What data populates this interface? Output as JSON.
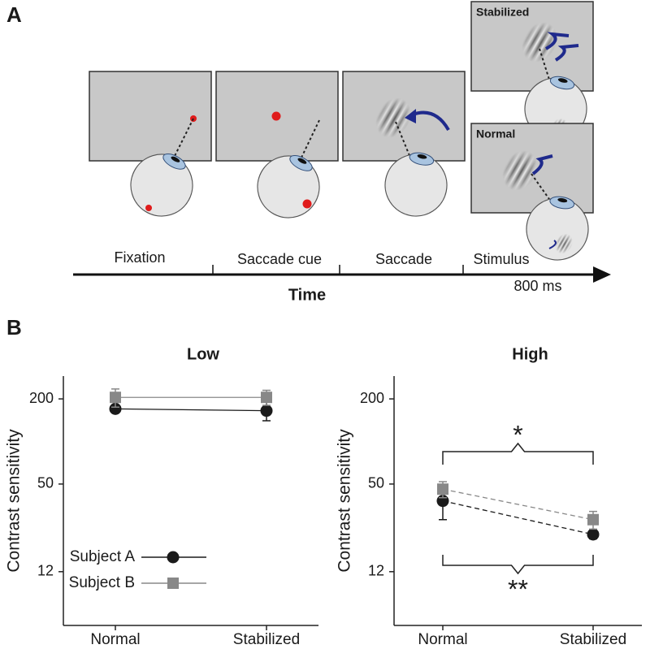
{
  "panel_a": {
    "label": "A",
    "stages": [
      "Fixation",
      "Saccade cue",
      "Saccade",
      "Stimulus"
    ],
    "axis_label": "Time",
    "duration": "800 ms",
    "conditions": [
      "Stabilized",
      "Normal"
    ]
  },
  "panel_b": {
    "label": "B"
  },
  "chart_data": [
    {
      "type": "line",
      "title": "Low",
      "y_label": "Contrast sensitivity",
      "categories": [
        "Normal",
        "Stabilized"
      ],
      "series": [
        {
          "name": "Subject A",
          "color": "#1a1a1a",
          "marker": "circle",
          "values": [
            170,
            165
          ],
          "errors": [
            10,
            25
          ]
        },
        {
          "name": "Subject B",
          "color": "#888888",
          "marker": "square",
          "values": [
            205,
            205
          ],
          "errors": [
            30,
            25
          ]
        }
      ],
      "line_style": "solid",
      "log_y": true,
      "ylim": [
        5,
        290
      ],
      "yticks": [
        12,
        50,
        200
      ],
      "legend": "lower left"
    },
    {
      "type": "line",
      "title": "High",
      "y_label": "Contrast sensitivity",
      "categories": [
        "Normal",
        "Stabilized"
      ],
      "series": [
        {
          "color": "#1a1a1a",
          "marker": "circle",
          "values": [
            38,
            22
          ],
          "errors": [
            10,
            1.5
          ]
        },
        {
          "color": "#888888",
          "marker": "square",
          "values": [
            46,
            28
          ],
          "errors": [
            6,
            4
          ]
        }
      ],
      "line_style": "dashed",
      "log_y": true,
      "ylim": [
        5,
        290
      ],
      "yticks": [
        12,
        50,
        200
      ],
      "annotations": [
        "*",
        "**"
      ]
    }
  ]
}
